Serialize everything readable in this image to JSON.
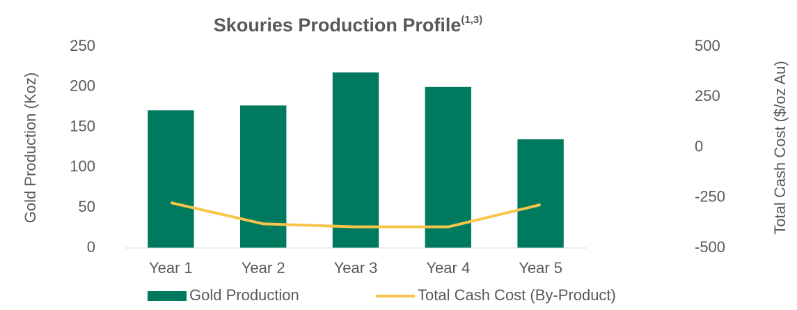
{
  "chart_data": {
    "type": "bar_line",
    "title": "Skouries Production Profile",
    "title_note": "(1,3)",
    "y_label": "Gold Production (Koz)",
    "y2_label": "Total Cash Cost ($/oz Au)",
    "categories": [
      "Year 1",
      "Year 2",
      "Year 3",
      "Year 4",
      "Year 5"
    ],
    "series": [
      {
        "name": "Gold Production",
        "type": "bar",
        "color": "#007a5e",
        "values": [
          171,
          177,
          218,
          200,
          135
        ]
      },
      {
        "name": "Total Cash Cost (By-Product)",
        "type": "line",
        "axis": "y2",
        "color": "#f7c54a",
        "values": [
          -275,
          -380,
          -395,
          -395,
          -285
        ]
      }
    ],
    "ylim": [
      0,
      250
    ],
    "yticks": [
      0,
      50,
      100,
      150,
      200,
      250
    ],
    "y2lim": [
      -500,
      500
    ],
    "y2ticks": [
      -500,
      -250,
      0,
      250,
      500
    ],
    "legend": "bottom"
  }
}
